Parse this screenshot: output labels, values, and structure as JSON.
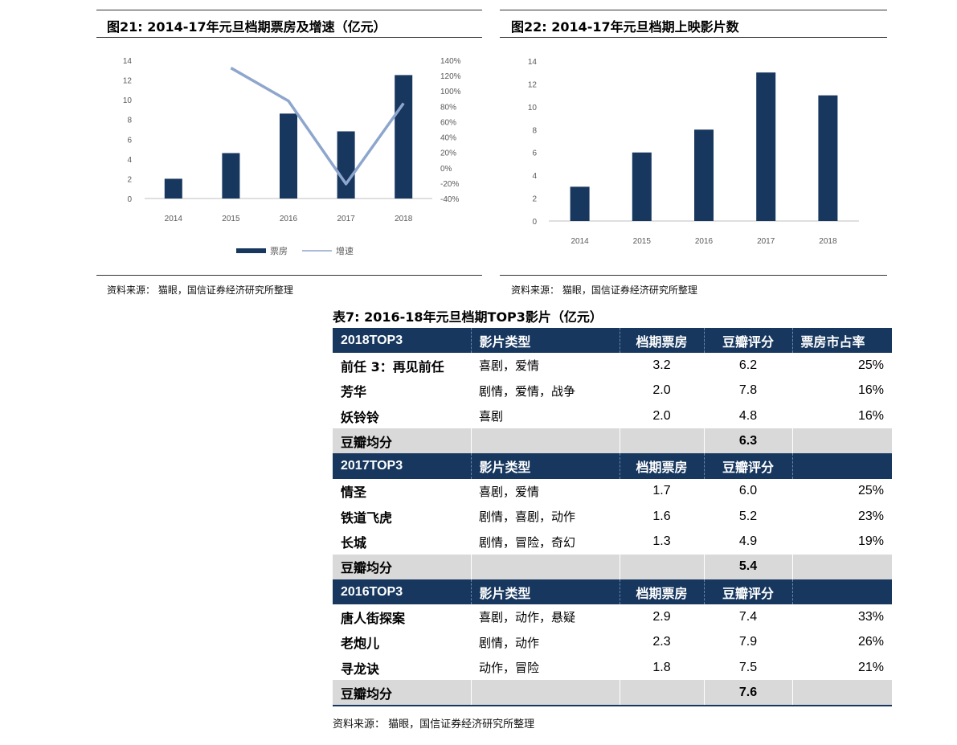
{
  "figure21": {
    "title": "图21:  2014-17年元旦档期票房及增速（亿元）",
    "source": "资料来源： 猫眼，国信证券经济研究所整理",
    "legend": {
      "bar": "票房",
      "line": "增速"
    },
    "colors": {
      "bar": "#17375e",
      "line": "#8ea6cd"
    }
  },
  "figure22": {
    "title": "图22:  2014-17年元旦档期上映影片数",
    "source": "资料来源： 猫眼，国信证券经济研究所整理",
    "colors": {
      "bar": "#17375e"
    }
  },
  "chart_data": [
    {
      "type": "bar",
      "title": "2014-17年元旦档期票房及增速（亿元）",
      "categories": [
        "2014",
        "2015",
        "2016",
        "2017",
        "2018"
      ],
      "series": [
        {
          "name": "票房",
          "type": "bar",
          "axis": "left",
          "values": [
            2.0,
            4.6,
            8.6,
            6.8,
            12.5
          ]
        },
        {
          "name": "增速",
          "type": "line",
          "axis": "right",
          "values": [
            null,
            1.3,
            0.87,
            -0.21,
            0.84
          ]
        }
      ],
      "ylim": [
        0,
        14
      ],
      "yticks": [
        "0",
        "2",
        "4",
        "6",
        "8",
        "10",
        "12",
        "14"
      ],
      "y2lim": [
        -0.4,
        1.4
      ],
      "y2ticks": [
        "-40%",
        "-20%",
        "0%",
        "20%",
        "40%",
        "60%",
        "80%",
        "100%",
        "120%",
        "140%"
      ],
      "legend": "bottom",
      "grid": false
    },
    {
      "type": "bar",
      "title": "2014-17年元旦档期上映影片数",
      "categories": [
        "2014",
        "2015",
        "2016",
        "2017",
        "2018"
      ],
      "values": [
        3,
        6,
        8,
        13,
        11
      ],
      "ylim": [
        0,
        14
      ],
      "yticks": [
        "0",
        "2",
        "4",
        "6",
        "8",
        "10",
        "12",
        "14"
      ],
      "grid": false
    }
  ],
  "table": {
    "title": "表7:  2016-18年元旦档期TOP3影片（亿元）",
    "source": "资料来源： 猫眼，国信证券经济研究所整理",
    "sections": [
      {
        "header": [
          "2018TOP3",
          "影片类型",
          "档期票房",
          "豆瓣评分",
          "票房市占率"
        ],
        "rows": [
          [
            "前任 3：再见前任",
            "喜剧，爱情",
            "3.2",
            "6.2",
            "25%"
          ],
          [
            "芳华",
            "剧情，爱情，战争",
            "2.0",
            "7.8",
            "16%"
          ],
          [
            "妖铃铃",
            "喜剧",
            "2.0",
            "4.8",
            "16%"
          ]
        ],
        "avg": {
          "label": "豆瓣均分",
          "value": "6.3"
        }
      },
      {
        "header": [
          "2017TOP3",
          "影片类型",
          "档期票房",
          "豆瓣评分",
          ""
        ],
        "rows": [
          [
            "情圣",
            "喜剧，爱情",
            "1.7",
            "6.0",
            "25%"
          ],
          [
            "铁道飞虎",
            "剧情，喜剧，动作",
            "1.6",
            "5.2",
            "23%"
          ],
          [
            "长城",
            "剧情，冒险，奇幻",
            "1.3",
            "4.9",
            "19%"
          ]
        ],
        "avg": {
          "label": "豆瓣均分",
          "value": "5.4"
        }
      },
      {
        "header": [
          "2016TOP3",
          "影片类型",
          "档期票房",
          "豆瓣评分",
          ""
        ],
        "rows": [
          [
            "唐人街探案",
            "喜剧，动作，悬疑",
            "2.9",
            "7.4",
            "33%"
          ],
          [
            "老炮儿",
            "剧情，动作",
            "2.3",
            "7.9",
            "26%"
          ],
          [
            "寻龙诀",
            "动作，冒险",
            "1.8",
            "7.5",
            "21%"
          ]
        ],
        "avg": {
          "label": "豆瓣均分",
          "value": "7.6"
        }
      }
    ]
  }
}
